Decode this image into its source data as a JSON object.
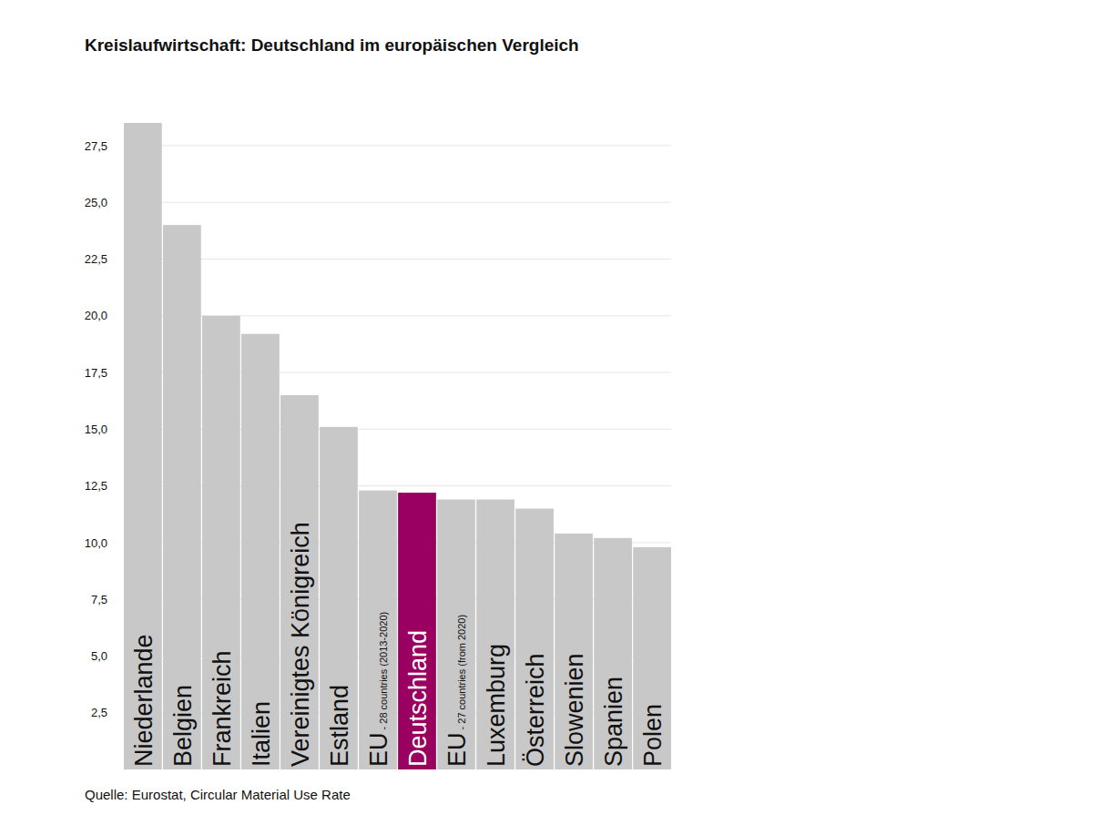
{
  "chart_data": {
    "type": "bar",
    "title": "Kreislaufwirtschaft: Deutschland im europäischen Vergleich",
    "source": "Quelle: Eurostat, Circular Material Use Rate",
    "categories": [
      "Niederlande",
      "Belgien",
      "Frankreich",
      "Italien",
      "Vereinigtes Königreich",
      "Estland",
      "EU - 28 countries (2013-2020)",
      "Deutschland",
      "EU - 27 countries (from 2020)",
      "Luxemburg",
      "Österreich",
      "Slowenien",
      "Spanien",
      "Polen"
    ],
    "values": [
      28.5,
      24.0,
      20.0,
      19.2,
      16.5,
      15.1,
      12.3,
      12.2,
      11.9,
      11.9,
      11.5,
      10.4,
      10.2,
      9.8
    ],
    "colors": [
      "#c8c8c8",
      "#c8c8c8",
      "#c8c8c8",
      "#c8c8c8",
      "#c8c8c8",
      "#c8c8c8",
      "#c8c8c8",
      "#99005f",
      "#c8c8c8",
      "#c8c8c8",
      "#c8c8c8",
      "#c8c8c8",
      "#c8c8c8",
      "#c8c8c8"
    ],
    "ylim": [
      0,
      28.5
    ],
    "yticks": [
      {
        "value": 2.5,
        "label": "2,5"
      },
      {
        "value": 5,
        "label": "5,0"
      },
      {
        "value": 7.5,
        "label": "7,5"
      },
      {
        "value": 10,
        "label": "10,0"
      },
      {
        "value": 12.5,
        "label": "12,5"
      },
      {
        "value": 15,
        "label": "15,0"
      },
      {
        "value": 17.5,
        "label": "17,5"
      },
      {
        "value": 20,
        "label": "20,0"
      },
      {
        "value": 22.5,
        "label": "22,5"
      },
      {
        "value": 25,
        "label": "25,0"
      },
      {
        "value": 27.5,
        "label": "27,5"
      }
    ],
    "grid": true
  }
}
